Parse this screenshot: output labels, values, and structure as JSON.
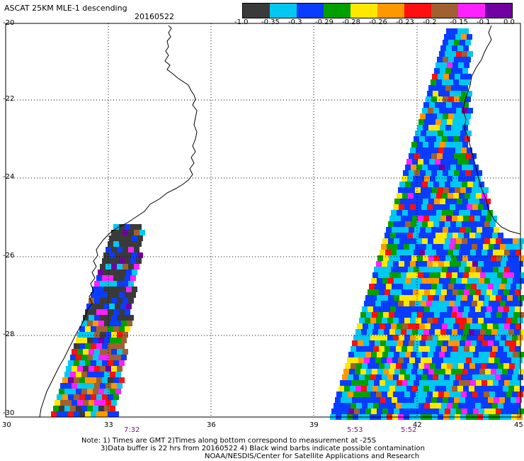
{
  "title": {
    "main": "ASCAT 25KM MLE-1 descending",
    "date": "20160522"
  },
  "colorbar": {
    "labels": [
      "-1.0",
      "-0.35",
      "-0.3",
      "-0.29",
      "-0.28",
      "-0.26",
      "-0.23",
      "-0.2",
      "-0.15",
      "-0.1",
      "0.0"
    ],
    "colors": [
      "#3a3a3a",
      "#00c8f0",
      "#0a3cff",
      "#00a000",
      "#ffe800",
      "#ff9800",
      "#ff1010",
      "#a06030",
      "#ff20ff",
      "#7000a0"
    ]
  },
  "axes": {
    "lat_labels": [
      "-20",
      "-22",
      "-24",
      "-26",
      "-28",
      "-30"
    ],
    "lon_labels": [
      "30",
      "33",
      "36",
      "39",
      "42",
      "45"
    ]
  },
  "swath_times": {
    "west": "7:32",
    "east_left": "5:53",
    "east_right": "5:52",
    "color": "#7a1a8a"
  },
  "notes": {
    "line1": "Note: 1) Times are GMT 2)Times along bottom correspond to measurement at -25S",
    "line2": "3)Data buffer is 22 hrs from 20160522 4) Black wind barbs indicate possible contamination",
    "line3": "NOAA/NESDIS/Center for Satellite Applications and Research"
  }
}
